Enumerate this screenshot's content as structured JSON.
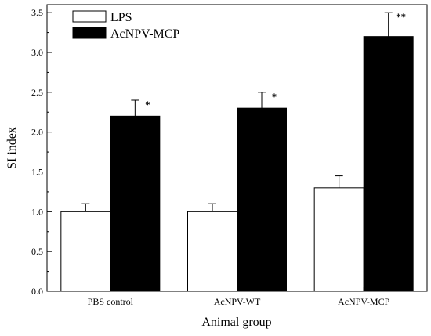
{
  "chart_data": {
    "type": "bar",
    "categories": [
      "PBS control",
      "AcNPV-WT",
      "AcNPV-MCP"
    ],
    "series": [
      {
        "name": "LPS",
        "color": "#ffffff",
        "values": [
          1.0,
          1.0,
          1.3
        ],
        "errors": [
          0.1,
          0.1,
          0.15
        ],
        "annotations": [
          "",
          "",
          ""
        ]
      },
      {
        "name": "AcNPV-MCP",
        "color": "#000000",
        "values": [
          2.2,
          2.3,
          3.2
        ],
        "errors": [
          0.2,
          0.2,
          0.3
        ],
        "annotations": [
          "*",
          "*",
          "**"
        ]
      }
    ],
    "xlabel": "Animal group",
    "ylabel": "SI index",
    "ylim": [
      0.0,
      3.6
    ],
    "yticks": [
      "0.0",
      "0.5",
      "1.0",
      "1.5",
      "2.0",
      "2.5",
      "3.0",
      "3.5"
    ],
    "grid": false,
    "legend_position": "top-left"
  }
}
